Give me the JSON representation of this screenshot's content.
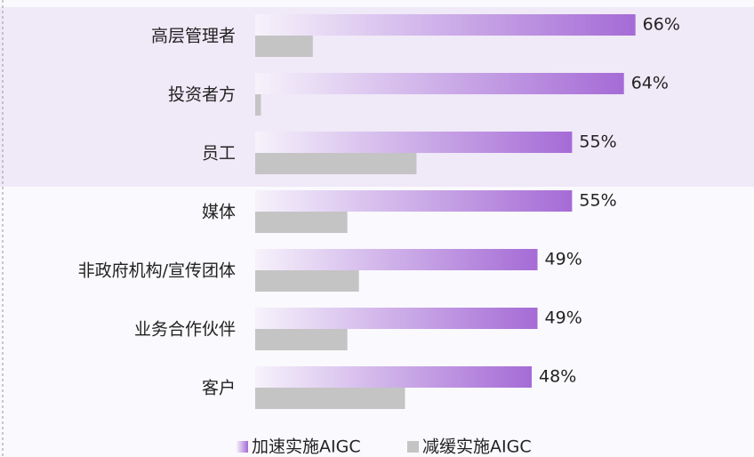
{
  "chart_data": {
    "type": "bar",
    "orientation": "horizontal",
    "categories": [
      "高层管理者",
      "投资者方",
      "员工",
      "媒体",
      "非政府机构/宣传团体",
      "业务合作伙伴",
      "客户"
    ],
    "series": [
      {
        "name": "加速实施AIGC",
        "color": "#a56bd6",
        "values": [
          66,
          64,
          55,
          55,
          49,
          49,
          48
        ],
        "value_labels": [
          "66%",
          "64%",
          "55%",
          "55%",
          "49%",
          "49%",
          "48%"
        ]
      },
      {
        "name": "减缓实施AIGC",
        "color": "#c4c4c4",
        "values": [
          10,
          1,
          28,
          16,
          18,
          16,
          26
        ]
      }
    ],
    "legend": "bottom"
  }
}
